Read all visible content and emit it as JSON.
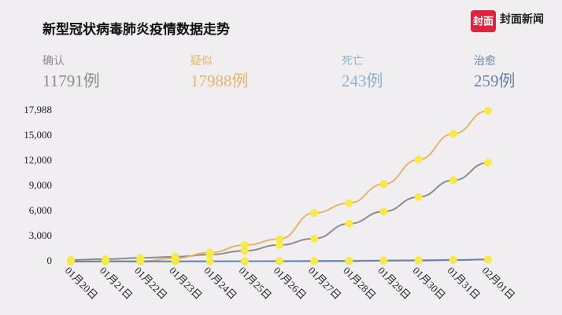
{
  "brand": {
    "logo": "封面",
    "name": "封面新闻"
  },
  "stats": [
    {
      "label": "确认",
      "value": "11791例",
      "color": "#8c8c8c"
    },
    {
      "label": "疑似",
      "value": "17988例",
      "color": "#e6b46c"
    },
    {
      "label": "死亡",
      "value": "243例",
      "color": "#8fb2cc"
    },
    {
      "label": "治愈",
      "value": "259例",
      "color": "#6a84a6"
    }
  ],
  "chart_data": {
    "type": "line",
    "title": "新型冠状病毒肺炎疫情数据走势",
    "categories": [
      "01月20日",
      "01月21日",
      "01月22日",
      "01月23日",
      "01月24日",
      "01月25日",
      "01月26日",
      "01月27日",
      "01月28日",
      "01月29日",
      "01月30日",
      "01月31日",
      "02月01日"
    ],
    "series": [
      {
        "name": "确认",
        "color": "#8c8c8c",
        "values": [
          200,
          291,
          440,
          571,
          830,
          1287,
          1975,
          2744,
          4515,
          5974,
          7711,
          9692,
          11791
        ]
      },
      {
        "name": "疑似",
        "color": "#e6b46c",
        "values": [
          0,
          54,
          37,
          393,
          1072,
          1965,
          2684,
          5794,
          6973,
          9239,
          12167,
          15238,
          17988
        ]
      },
      {
        "name": "死亡",
        "color": "#8fb2cc",
        "values": [
          3,
          6,
          9,
          17,
          25,
          41,
          56,
          80,
          106,
          132,
          170,
          213,
          243
        ]
      },
      {
        "name": "治愈",
        "color": "#6a84a6",
        "values": [
          0,
          25,
          25,
          28,
          34,
          38,
          49,
          51,
          60,
          103,
          124,
          171,
          259
        ]
      }
    ],
    "marker_color": "#f7e94a",
    "ylim": [
      0,
      17988
    ],
    "yticks": [
      0,
      {
        "value": 3000,
        "label": "3,000"
      },
      {
        "value": 6000,
        "label": "6,000"
      },
      {
        "value": 9000,
        "label": "9,000"
      },
      {
        "value": 12000,
        "label": "12,000"
      },
      {
        "value": 15000,
        "label": "15,000"
      },
      {
        "value": 17988,
        "label": "17,988"
      }
    ],
    "grid": false
  }
}
